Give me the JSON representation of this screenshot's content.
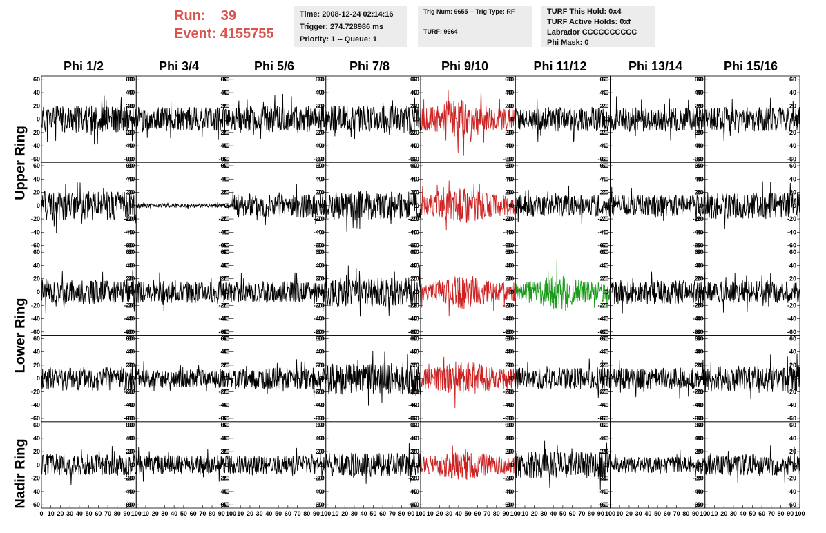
{
  "run_info": {
    "run_label": "Run:",
    "run_value": "39",
    "event_label": "Event:",
    "event_value": "4155755",
    "color": "#d9534f"
  },
  "info_box_time": {
    "time": "Time: 2008-12-24 02:14:16",
    "trigger": "Trigger: 274.728986 ms",
    "priority": "Priority: 1 -- Queue: 1"
  },
  "info_box_trig": {
    "trig": "Trig Num: 9655 -- Trig Type: RF",
    "turf": "TURF: 9664"
  },
  "info_box_turf": {
    "this_hold": "TURF This Hold: 0x4",
    "active_holds": "TURF Active Holds: 0xf",
    "labrador": "Labrador CCCCCCCCCC",
    "phi_mask": "Phi Mask: 0"
  },
  "columns": [
    "Phi 1/2",
    "Phi 3/4",
    "Phi 5/6",
    "Phi 7/8",
    "Phi 9/10",
    "Phi 11/12",
    "Phi 13/14",
    "Phi 15/16"
  ],
  "row_labels": {
    "upper": "Upper Ring",
    "lower": "Lower Ring",
    "nadir": "Nadir Ring"
  },
  "colors": {
    "default_trace": "#000000",
    "triggered_phi": "#cc2222",
    "triggered_antenna": "#1a9a1a"
  },
  "chart_data": {
    "type": "line",
    "grid": false,
    "xlim": [
      0,
      100
    ],
    "ylim": [
      -65,
      65
    ],
    "ytick_labels": [
      "60",
      "40",
      "20",
      "0",
      "-20",
      "-40",
      "-60"
    ],
    "xtick_labels": [
      "0",
      "10",
      "20",
      "30",
      "40",
      "50",
      "60",
      "70",
      "80",
      "90",
      "100"
    ],
    "rows": 5,
    "cols": 8,
    "panels": [
      {
        "row": 0,
        "col": 0,
        "amplitude": 20,
        "color": "default",
        "seed": 11
      },
      {
        "row": 0,
        "col": 1,
        "amplitude": 18,
        "color": "default",
        "seed": 12
      },
      {
        "row": 0,
        "col": 2,
        "amplitude": 20,
        "color": "default",
        "seed": 13
      },
      {
        "row": 0,
        "col": 3,
        "amplitude": 20,
        "color": "default",
        "seed": 14
      },
      {
        "row": 0,
        "col": 4,
        "amplitude": 30,
        "color": "triggered_phi",
        "seed": 15
      },
      {
        "row": 0,
        "col": 5,
        "amplitude": 18,
        "color": "default",
        "seed": 16
      },
      {
        "row": 0,
        "col": 6,
        "amplitude": 18,
        "color": "default",
        "seed": 17
      },
      {
        "row": 0,
        "col": 7,
        "amplitude": 18,
        "color": "default",
        "seed": 18
      },
      {
        "row": 1,
        "col": 0,
        "amplitude": 22,
        "color": "default",
        "seed": 21
      },
      {
        "row": 1,
        "col": 1,
        "amplitude": 3,
        "color": "default",
        "seed": 22
      },
      {
        "row": 1,
        "col": 2,
        "amplitude": 18,
        "color": "default",
        "seed": 23
      },
      {
        "row": 1,
        "col": 3,
        "amplitude": 22,
        "color": "default",
        "seed": 24
      },
      {
        "row": 1,
        "col": 4,
        "amplitude": 28,
        "color": "triggered_phi",
        "seed": 25
      },
      {
        "row": 1,
        "col": 5,
        "amplitude": 16,
        "color": "default",
        "seed": 26
      },
      {
        "row": 1,
        "col": 6,
        "amplitude": 16,
        "color": "default",
        "seed": 27
      },
      {
        "row": 1,
        "col": 7,
        "amplitude": 20,
        "color": "default",
        "seed": 28
      },
      {
        "row": 2,
        "col": 0,
        "amplitude": 18,
        "color": "default",
        "seed": 31
      },
      {
        "row": 2,
        "col": 1,
        "amplitude": 16,
        "color": "default",
        "seed": 32
      },
      {
        "row": 2,
        "col": 2,
        "amplitude": 16,
        "color": "default",
        "seed": 33
      },
      {
        "row": 2,
        "col": 3,
        "amplitude": 22,
        "color": "default",
        "seed": 34
      },
      {
        "row": 2,
        "col": 4,
        "amplitude": 26,
        "color": "triggered_phi",
        "seed": 35
      },
      {
        "row": 2,
        "col": 5,
        "amplitude": 26,
        "color": "triggered_antenna",
        "seed": 36
      },
      {
        "row": 2,
        "col": 6,
        "amplitude": 18,
        "color": "default",
        "seed": 37
      },
      {
        "row": 2,
        "col": 7,
        "amplitude": 16,
        "color": "default",
        "seed": 38
      },
      {
        "row": 3,
        "col": 0,
        "amplitude": 18,
        "color": "default",
        "seed": 41
      },
      {
        "row": 3,
        "col": 1,
        "amplitude": 14,
        "color": "default",
        "seed": 42
      },
      {
        "row": 3,
        "col": 2,
        "amplitude": 16,
        "color": "default",
        "seed": 43
      },
      {
        "row": 3,
        "col": 3,
        "amplitude": 24,
        "color": "default",
        "seed": 44
      },
      {
        "row": 3,
        "col": 4,
        "amplitude": 28,
        "color": "triggered_phi",
        "seed": 45
      },
      {
        "row": 3,
        "col": 5,
        "amplitude": 16,
        "color": "default",
        "seed": 46
      },
      {
        "row": 3,
        "col": 6,
        "amplitude": 16,
        "color": "default",
        "seed": 47
      },
      {
        "row": 3,
        "col": 7,
        "amplitude": 20,
        "color": "default",
        "seed": 48
      },
      {
        "row": 4,
        "col": 0,
        "amplitude": 16,
        "color": "default",
        "seed": 51
      },
      {
        "row": 4,
        "col": 1,
        "amplitude": 14,
        "color": "default",
        "seed": 52
      },
      {
        "row": 4,
        "col": 2,
        "amplitude": 14,
        "color": "default",
        "seed": 53
      },
      {
        "row": 4,
        "col": 3,
        "amplitude": 18,
        "color": "default",
        "seed": 54
      },
      {
        "row": 4,
        "col": 4,
        "amplitude": 24,
        "color": "triggered_phi",
        "seed": 55
      },
      {
        "row": 4,
        "col": 5,
        "amplitude": 20,
        "color": "default",
        "seed": 56
      },
      {
        "row": 4,
        "col": 6,
        "amplitude": 12,
        "color": "default",
        "seed": 57
      },
      {
        "row": 4,
        "col": 7,
        "amplitude": 16,
        "color": "default",
        "seed": 58
      }
    ]
  }
}
